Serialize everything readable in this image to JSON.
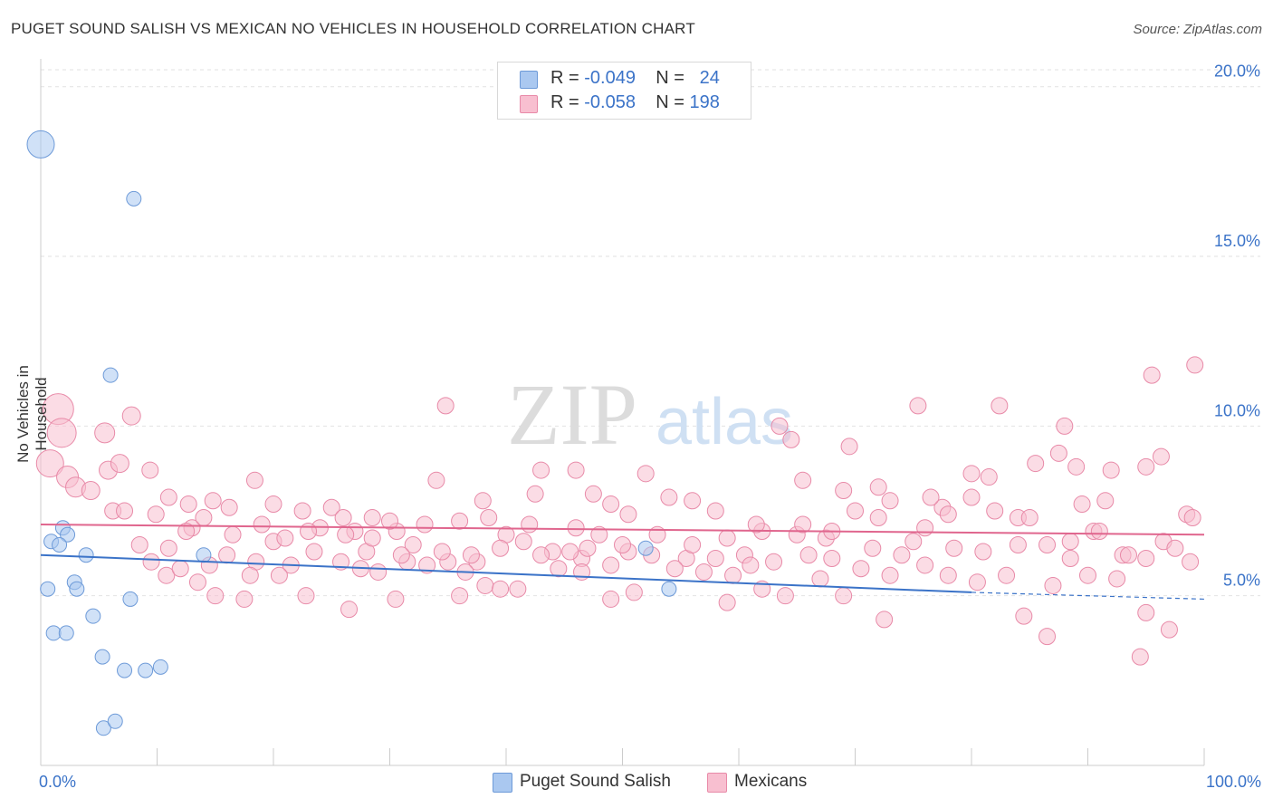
{
  "title": "PUGET SOUND SALISH VS MEXICAN NO VEHICLES IN HOUSEHOLD CORRELATION CHART",
  "source": "Source: ZipAtlas.com",
  "watermark": {
    "zip": "ZIP",
    "atlas": "atlas"
  },
  "legend": {
    "rows": [
      {
        "r_label": "R = ",
        "r_value": "-0.049",
        "n_label": "N = ",
        "n_value": "24",
        "color": "#aac8f0",
        "border": "#6d9ad8"
      },
      {
        "r_label": "R = ",
        "r_value": "-0.058",
        "n_label": "N = ",
        "n_value": "198",
        "color": "#f8bfd0",
        "border": "#e88aa8"
      }
    ]
  },
  "bottom_legend": [
    {
      "label": "Puget Sound Salish",
      "color": "#aac8f0",
      "border": "#6d9ad8"
    },
    {
      "label": "Mexicans",
      "color": "#f8bfd0",
      "border": "#e88aa8"
    }
  ],
  "chart_data": {
    "type": "scatter",
    "title": "PUGET SOUND SALISH VS MEXICAN NO VEHICLES IN HOUSEHOLD CORRELATION CHART",
    "xlabel": "",
    "ylabel": "No Vehicles in Household",
    "xlim": [
      0,
      100
    ],
    "ylim": [
      0,
      20.5
    ],
    "x_tick_labels": [
      "0.0%",
      "100.0%"
    ],
    "y_ticks": [
      5,
      10,
      15,
      20
    ],
    "y_tick_labels": [
      "5.0%",
      "10.0%",
      "15.0%",
      "20.0%"
    ],
    "grid": true,
    "series": [
      {
        "name": "Puget Sound Salish",
        "color": "#aac8f0",
        "stroke": "#6d9ad8",
        "trend": {
          "x": [
            0,
            80
          ],
          "y": [
            6.2,
            5.1
          ],
          "dash_to": [
            100,
            4.9
          ],
          "color": "#3b73c8"
        },
        "points": [
          [
            0.0,
            18.3,
            15
          ],
          [
            8.0,
            16.7,
            8
          ],
          [
            6.0,
            11.5,
            8
          ],
          [
            1.9,
            7.0,
            8
          ],
          [
            2.3,
            6.8,
            8
          ],
          [
            0.9,
            6.6,
            8
          ],
          [
            1.6,
            6.5,
            8
          ],
          [
            3.9,
            6.2,
            8
          ],
          [
            14.0,
            6.2,
            8
          ],
          [
            2.9,
            5.4,
            8
          ],
          [
            3.1,
            5.2,
            8
          ],
          [
            0.6,
            5.2,
            8
          ],
          [
            7.7,
            4.9,
            8
          ],
          [
            4.5,
            4.4,
            8
          ],
          [
            1.1,
            3.9,
            8
          ],
          [
            2.2,
            3.9,
            8
          ],
          [
            5.3,
            3.2,
            8
          ],
          [
            7.2,
            2.8,
            8
          ],
          [
            9.0,
            2.8,
            8
          ],
          [
            10.3,
            2.9,
            8
          ],
          [
            5.4,
            1.1,
            8
          ],
          [
            6.4,
            1.3,
            8
          ],
          [
            52.0,
            6.4,
            8
          ],
          [
            54.0,
            5.2,
            8
          ]
        ]
      },
      {
        "name": "Mexicans",
        "color": "#f8bfd0",
        "stroke": "#e88aa8",
        "trend": {
          "x": [
            0,
            100
          ],
          "y": [
            7.1,
            6.8
          ],
          "color": "#e0668e"
        },
        "points": [
          [
            1.5,
            10.5,
            17
          ],
          [
            1.8,
            9.8,
            16
          ],
          [
            0.8,
            8.9,
            15
          ],
          [
            2.3,
            8.5,
            12
          ],
          [
            3.0,
            8.2,
            11
          ],
          [
            4.3,
            8.1,
            10
          ],
          [
            5.5,
            9.8,
            11
          ],
          [
            7.8,
            10.3,
            10
          ],
          [
            5.8,
            8.7,
            10
          ],
          [
            6.8,
            8.9,
            10
          ],
          [
            9.4,
            8.7,
            9
          ],
          [
            6.2,
            7.5,
            9
          ],
          [
            7.2,
            7.5,
            9
          ],
          [
            9.9,
            7.4,
            9
          ],
          [
            11.0,
            7.9,
            9
          ],
          [
            12.7,
            7.7,
            9
          ],
          [
            14.8,
            7.8,
            9
          ],
          [
            16.2,
            7.6,
            9
          ],
          [
            18.4,
            8.4,
            9
          ],
          [
            20.0,
            7.7,
            9
          ],
          [
            22.5,
            7.5,
            9
          ],
          [
            25.0,
            7.6,
            9
          ],
          [
            26.0,
            7.3,
            9
          ],
          [
            28.5,
            7.3,
            9
          ],
          [
            30.6,
            6.9,
            9
          ],
          [
            32.0,
            6.5,
            9
          ],
          [
            35.0,
            6.0,
            9
          ],
          [
            37.5,
            6.0,
            9
          ],
          [
            40.0,
            6.8,
            9
          ],
          [
            42.0,
            7.1,
            9
          ],
          [
            44.0,
            6.3,
            9
          ],
          [
            46.5,
            6.1,
            9
          ],
          [
            48.0,
            6.8,
            9
          ],
          [
            50.5,
            6.3,
            9
          ],
          [
            53.0,
            6.8,
            9
          ],
          [
            55.5,
            6.1,
            9
          ],
          [
            58.0,
            6.1,
            9
          ],
          [
            60.5,
            6.2,
            9
          ],
          [
            63.0,
            6.0,
            9
          ],
          [
            65.0,
            6.8,
            9
          ],
          [
            67.5,
            6.7,
            9
          ],
          [
            70.0,
            7.5,
            9
          ],
          [
            72.0,
            7.3,
            9
          ],
          [
            75.0,
            6.6,
            9
          ],
          [
            77.5,
            7.6,
            9
          ],
          [
            80.0,
            7.9,
            9
          ],
          [
            82.0,
            7.5,
            9
          ],
          [
            84.0,
            7.3,
            9
          ],
          [
            86.5,
            6.5,
            9
          ],
          [
            88.5,
            6.6,
            9
          ],
          [
            90.5,
            6.9,
            9
          ],
          [
            93.0,
            6.2,
            9
          ],
          [
            95.0,
            6.1,
            9
          ],
          [
            96.5,
            6.6,
            9
          ],
          [
            98.5,
            7.4,
            9
          ],
          [
            99.2,
            11.8,
            9
          ],
          [
            95.5,
            11.5,
            9
          ],
          [
            34.8,
            10.6,
            9
          ],
          [
            75.4,
            10.6,
            9
          ],
          [
            82.4,
            10.6,
            9
          ],
          [
            88.0,
            10.0,
            9
          ],
          [
            63.5,
            10.0,
            9
          ],
          [
            64.5,
            9.6,
            9
          ],
          [
            69.5,
            9.4,
            9
          ],
          [
            87.5,
            9.2,
            9
          ],
          [
            96.3,
            9.1,
            9
          ],
          [
            85.5,
            8.9,
            9
          ],
          [
            89.0,
            8.8,
            9
          ],
          [
            95.0,
            8.8,
            9
          ],
          [
            92.0,
            8.7,
            9
          ],
          [
            80.0,
            8.6,
            9
          ],
          [
            81.5,
            8.5,
            9
          ],
          [
            72.0,
            8.2,
            9
          ],
          [
            65.5,
            8.4,
            9
          ],
          [
            52.0,
            8.6,
            9
          ],
          [
            46.0,
            8.7,
            9
          ],
          [
            43.0,
            8.7,
            9
          ],
          [
            47.5,
            8.0,
            9
          ],
          [
            42.5,
            8.0,
            9
          ],
          [
            38.0,
            7.8,
            9
          ],
          [
            34.0,
            8.4,
            9
          ],
          [
            30.0,
            7.2,
            9
          ],
          [
            27.0,
            6.9,
            9
          ],
          [
            24.0,
            7.0,
            9
          ],
          [
            20.0,
            6.6,
            9
          ],
          [
            18.5,
            6.0,
            9
          ],
          [
            16.0,
            6.2,
            9
          ],
          [
            14.5,
            5.9,
            9
          ],
          [
            13.0,
            7.0,
            9
          ],
          [
            11.0,
            6.4,
            9
          ],
          [
            9.5,
            6.0,
            9
          ],
          [
            8.5,
            6.5,
            9
          ],
          [
            10.8,
            5.6,
            9
          ],
          [
            13.5,
            5.4,
            9
          ],
          [
            15.0,
            5.0,
            9
          ],
          [
            17.5,
            4.9,
            9
          ],
          [
            21.5,
            5.9,
            9
          ],
          [
            23.5,
            6.3,
            9
          ],
          [
            25.8,
            6.0,
            9
          ],
          [
            27.5,
            5.8,
            9
          ],
          [
            29.0,
            5.7,
            9
          ],
          [
            31.5,
            6.0,
            9
          ],
          [
            33.2,
            5.9,
            9
          ],
          [
            36.5,
            5.7,
            9
          ],
          [
            38.2,
            5.3,
            9
          ],
          [
            39.5,
            5.2,
            9
          ],
          [
            41.0,
            5.2,
            9
          ],
          [
            44.5,
            5.8,
            9
          ],
          [
            46.5,
            5.7,
            9
          ],
          [
            49.0,
            5.9,
            9
          ],
          [
            51.0,
            5.1,
            9
          ],
          [
            54.5,
            5.8,
            9
          ],
          [
            57.0,
            5.7,
            9
          ],
          [
            59.5,
            5.6,
            9
          ],
          [
            61.0,
            5.9,
            9
          ],
          [
            62.0,
            5.2,
            9
          ],
          [
            64.0,
            5.0,
            9
          ],
          [
            67.0,
            5.5,
            9
          ],
          [
            70.5,
            5.8,
            9
          ],
          [
            73.0,
            5.6,
            9
          ],
          [
            76.0,
            5.9,
            9
          ],
          [
            78.0,
            5.6,
            9
          ],
          [
            80.5,
            5.4,
            9
          ],
          [
            83.0,
            5.6,
            9
          ],
          [
            87.0,
            5.3,
            9
          ],
          [
            90.0,
            5.6,
            9
          ],
          [
            92.5,
            5.5,
            9
          ],
          [
            95.0,
            4.5,
            9
          ],
          [
            97.0,
            4.0,
            9
          ],
          [
            94.5,
            3.2,
            9
          ],
          [
            84.5,
            4.4,
            9
          ],
          [
            86.5,
            3.8,
            9
          ],
          [
            72.5,
            4.3,
            9
          ],
          [
            69.0,
            5.0,
            9
          ],
          [
            59.0,
            4.8,
            9
          ],
          [
            49.0,
            4.9,
            9
          ],
          [
            36.0,
            5.0,
            9
          ],
          [
            30.5,
            4.9,
            9
          ],
          [
            26.5,
            4.6,
            9
          ],
          [
            22.8,
            5.0,
            9
          ],
          [
            18.0,
            5.6,
            9
          ],
          [
            12.0,
            5.8,
            9
          ],
          [
            20.5,
            5.6,
            9
          ],
          [
            28.0,
            6.3,
            9
          ],
          [
            31.0,
            6.2,
            9
          ],
          [
            34.5,
            6.3,
            9
          ],
          [
            37.0,
            6.2,
            9
          ],
          [
            39.5,
            6.4,
            9
          ],
          [
            43.0,
            6.2,
            9
          ],
          [
            45.5,
            6.3,
            9
          ],
          [
            47.0,
            6.4,
            9
          ],
          [
            50.0,
            6.5,
            9
          ],
          [
            52.5,
            6.2,
            9
          ],
          [
            56.0,
            6.5,
            9
          ],
          [
            59.0,
            6.7,
            9
          ],
          [
            62.0,
            6.9,
            9
          ],
          [
            66.0,
            6.2,
            9
          ],
          [
            68.0,
            6.1,
            9
          ],
          [
            71.5,
            6.4,
            9
          ],
          [
            74.0,
            6.2,
            9
          ],
          [
            76.0,
            7.0,
            9
          ],
          [
            78.5,
            6.4,
            9
          ],
          [
            81.0,
            6.3,
            9
          ],
          [
            84.0,
            6.5,
            9
          ],
          [
            88.5,
            6.1,
            9
          ],
          [
            91.0,
            6.9,
            9
          ],
          [
            93.5,
            6.2,
            9
          ],
          [
            97.5,
            6.4,
            9
          ],
          [
            98.8,
            6.0,
            9
          ],
          [
            99.0,
            7.3,
            9
          ],
          [
            91.5,
            7.8,
            9
          ],
          [
            89.5,
            7.7,
            9
          ],
          [
            85.0,
            7.3,
            9
          ],
          [
            78.0,
            7.4,
            9
          ],
          [
            76.5,
            7.9,
            9
          ],
          [
            73.0,
            7.8,
            9
          ],
          [
            69.0,
            8.1,
            9
          ],
          [
            68.0,
            6.9,
            9
          ],
          [
            65.5,
            7.1,
            9
          ],
          [
            61.5,
            7.1,
            9
          ],
          [
            58.0,
            7.5,
            9
          ],
          [
            56.0,
            7.8,
            9
          ],
          [
            54.0,
            7.9,
            9
          ],
          [
            50.5,
            7.4,
            9
          ],
          [
            49.0,
            7.7,
            9
          ],
          [
            46.0,
            7.0,
            9
          ],
          [
            41.5,
            6.6,
            9
          ],
          [
            38.5,
            7.3,
            9
          ],
          [
            36.0,
            7.2,
            9
          ],
          [
            33.0,
            7.1,
            9
          ],
          [
            28.5,
            6.7,
            9
          ],
          [
            26.2,
            6.8,
            9
          ],
          [
            23.0,
            6.9,
            9
          ],
          [
            21.0,
            6.7,
            9
          ],
          [
            19.0,
            7.1,
            9
          ],
          [
            16.5,
            6.8,
            9
          ],
          [
            14.0,
            7.3,
            9
          ],
          [
            12.5,
            6.9,
            9
          ]
        ]
      }
    ]
  }
}
